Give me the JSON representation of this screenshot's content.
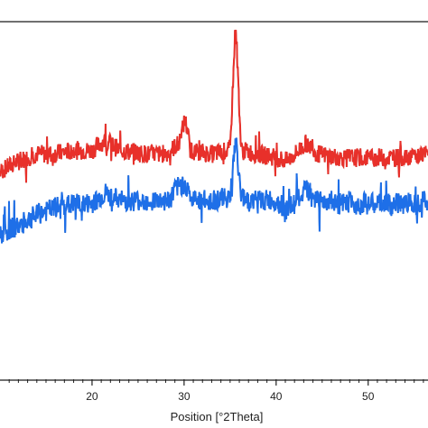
{
  "chart_data": {
    "type": "line",
    "title": "",
    "xlabel": "Position [°2Theta]",
    "ylabel": "",
    "xlim": [
      10,
      56.5
    ],
    "ylim": [
      0,
      100
    ],
    "grid": false,
    "legend": "none",
    "x_ticks": [
      20,
      30,
      40,
      50
    ],
    "x_tick_labels": [
      "20",
      "30",
      "40",
      "50"
    ],
    "baseline_y": 0,
    "series": [
      {
        "color": "#e8302a",
        "outline": "#2a1414",
        "baseline": 63,
        "noise": 2.6,
        "points": [
          [
            10,
            58
          ],
          [
            12,
            61
          ],
          [
            14,
            63
          ],
          [
            16,
            63
          ],
          [
            18,
            64
          ],
          [
            20,
            64
          ],
          [
            21.5,
            67
          ],
          [
            23,
            64
          ],
          [
            26,
            63
          ],
          [
            28,
            63
          ],
          [
            29.5,
            66
          ],
          [
            30.1,
            73
          ],
          [
            30.7,
            64
          ],
          [
            33,
            63
          ],
          [
            35,
            64
          ],
          [
            35.6,
            100
          ],
          [
            36.2,
            64
          ],
          [
            38,
            63
          ],
          [
            40,
            62
          ],
          [
            41.2,
            61
          ],
          [
            43.3,
            66
          ],
          [
            44.5,
            63
          ],
          [
            47,
            62
          ],
          [
            50,
            62
          ],
          [
            53,
            62
          ],
          [
            56.5,
            63
          ]
        ]
      },
      {
        "color": "#1e6fe8",
        "outline": "#0c1a3a",
        "baseline": 50,
        "noise": 3.0,
        "points": [
          [
            10,
            40
          ],
          [
            11,
            42
          ],
          [
            12,
            43
          ],
          [
            14,
            46
          ],
          [
            16,
            48
          ],
          [
            18,
            49
          ],
          [
            20,
            49
          ],
          [
            21.5,
            52
          ],
          [
            23,
            50
          ],
          [
            26,
            50
          ],
          [
            28.5,
            50
          ],
          [
            29,
            53
          ],
          [
            30.1,
            55
          ],
          [
            30.8,
            50
          ],
          [
            33,
            50
          ],
          [
            35,
            51
          ],
          [
            35.6,
            67
          ],
          [
            36.2,
            51
          ],
          [
            38,
            50
          ],
          [
            40,
            50
          ],
          [
            41.2,
            47
          ],
          [
            43.3,
            53
          ],
          [
            44.5,
            50
          ],
          [
            47,
            49
          ],
          [
            50,
            49
          ],
          [
            53,
            49
          ],
          [
            56.5,
            50
          ]
        ]
      }
    ]
  }
}
